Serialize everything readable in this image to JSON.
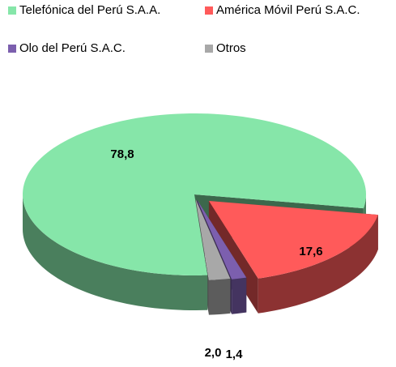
{
  "chart_data": {
    "type": "pie",
    "categories": [
      "Telefónica del Perú S.A.A.",
      "América Móvil Perú S.A.C.",
      "Olo del Perú S.A.C.",
      "Otros"
    ],
    "values": [
      78.8,
      17.6,
      1.4,
      2.0
    ],
    "value_labels": [
      "78,8",
      "17,6",
      "1,4",
      "2,0"
    ],
    "colors": [
      "#86e6a9",
      "#ff5a5a",
      "#7c5fae",
      "#a8a8a8"
    ],
    "legend": "top"
  }
}
